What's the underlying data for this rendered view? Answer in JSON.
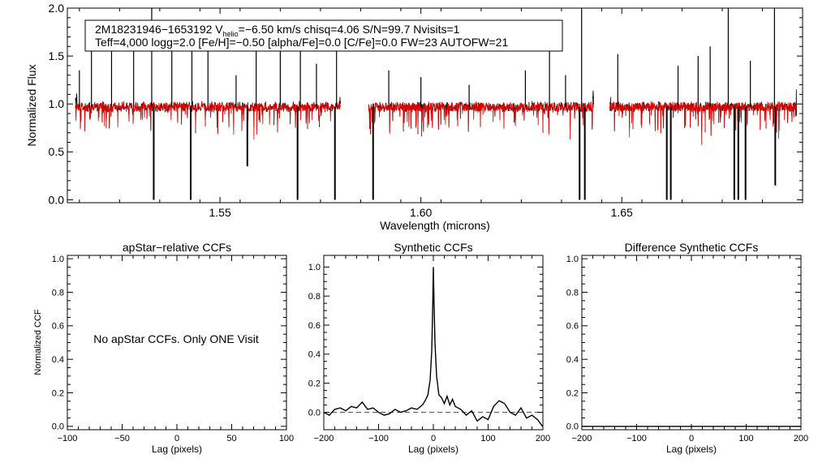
{
  "chart_data": [
    {
      "id": "spectrum",
      "type": "line",
      "xlabel": "Wavelength (microns)",
      "ylabel": "Normalized Flux",
      "xlim": [
        1.512,
        1.695
      ],
      "ylim": [
        -0.03,
        2.0
      ],
      "xticks": [
        {
          "value": 1.55,
          "label": "1.55"
        },
        {
          "value": 1.6,
          "label": "1.60"
        },
        {
          "value": 1.65,
          "label": "1.65"
        }
      ],
      "yticks": [
        {
          "value": 0.0,
          "label": "0.0"
        },
        {
          "value": 0.5,
          "label": "0.5"
        },
        {
          "value": 1.0,
          "label": "1.0"
        },
        {
          "value": 1.5,
          "label": "1.5"
        },
        {
          "value": 2.0,
          "label": "2.0"
        }
      ],
      "annotation": {
        "line1_prefix": "2M18231946−1653192  V",
        "line1_sub": "helio",
        "line1_suffix": "=−6.50 km/s  chisq=4.06  S/N=99.7  Nvisits=1",
        "line2": "Teff=4,000 logg=2.0 [Fe/H]=−0.50 [alpha/Fe]=0.0 [C/Fe]=0.0 FW=23 AUTOFW=21"
      },
      "series": [
        {
          "name": "observed",
          "color": "#000000"
        },
        {
          "name": "model",
          "color": "#e00000"
        }
      ],
      "chips": [
        [
          1.514,
          1.58
        ],
        [
          1.587,
          1.643
        ],
        [
          1.647,
          1.6935
        ]
      ],
      "continuum": 0.97,
      "emission_spikes": [
        [
          1.515,
          1.35
        ],
        [
          1.518,
          1.55
        ],
        [
          1.523,
          1.8
        ],
        [
          1.5285,
          1.85
        ],
        [
          1.533,
          2.0
        ],
        [
          1.538,
          1.62
        ],
        [
          1.543,
          1.78
        ],
        [
          1.547,
          1.6
        ],
        [
          1.554,
          1.3
        ],
        [
          1.559,
          1.78
        ],
        [
          1.565,
          1.55
        ],
        [
          1.57,
          1.78
        ],
        [
          1.574,
          1.42
        ],
        [
          1.579,
          1.65
        ],
        [
          1.592,
          1.35
        ],
        [
          1.6,
          1.28
        ],
        [
          1.612,
          1.2
        ],
        [
          1.626,
          1.35
        ],
        [
          1.632,
          1.55
        ],
        [
          1.636,
          1.3
        ],
        [
          1.64,
          2.0
        ],
        [
          1.649,
          1.52
        ],
        [
          1.664,
          1.4
        ],
        [
          1.669,
          1.5
        ],
        [
          1.672,
          1.6
        ],
        [
          1.6765,
          2.0
        ],
        [
          1.682,
          1.45
        ],
        [
          1.688,
          2.0
        ]
      ],
      "absorption_spikes": [
        [
          1.5335,
          0.0
        ],
        [
          1.5427,
          0.0
        ],
        [
          1.5568,
          0.35
        ],
        [
          1.5693,
          0.0
        ],
        [
          1.5786,
          0.0
        ],
        [
          1.5881,
          0.0
        ],
        [
          1.6395,
          0.0
        ],
        [
          1.6408,
          0.0
        ],
        [
          1.6612,
          0.0
        ],
        [
          1.6622,
          0.0
        ],
        [
          1.678,
          0.0
        ],
        [
          1.679,
          0.0
        ],
        [
          1.6808,
          0.0
        ],
        [
          1.6882,
          0.15
        ]
      ]
    },
    {
      "id": "apstar-ccf",
      "type": "line",
      "title": "apStar−relative CCFs",
      "xlabel": "Lag (pixels)",
      "ylabel": "Normalized CCF",
      "xlim": [
        -100,
        100
      ],
      "ylim": [
        -0.02,
        1.02
      ],
      "xticks": [
        {
          "value": -100,
          "label": "−100"
        },
        {
          "value": -50,
          "label": "−50"
        },
        {
          "value": 0,
          "label": "0"
        },
        {
          "value": 50,
          "label": "50"
        },
        {
          "value": 100,
          "label": "100"
        }
      ],
      "yticks": [
        {
          "value": 0.0,
          "label": "0.0"
        },
        {
          "value": 0.2,
          "label": "0.2"
        },
        {
          "value": 0.4,
          "label": "0.4"
        },
        {
          "value": 0.6,
          "label": "0.6"
        },
        {
          "value": 0.8,
          "label": "0.8"
        },
        {
          "value": 1.0,
          "label": "1.0"
        }
      ],
      "message": "No apStar CCFs.  Only ONE Visit"
    },
    {
      "id": "synthetic-ccf",
      "type": "line",
      "title": "Synthetic CCFs",
      "xlabel": "Lag (pixels)",
      "xlim": [
        -200,
        200
      ],
      "ylim": [
        -0.12,
        1.08
      ],
      "xticks": [
        {
          "value": -200,
          "label": "−200"
        },
        {
          "value": -100,
          "label": "−100"
        },
        {
          "value": 0,
          "label": "0"
        },
        {
          "value": 100,
          "label": "100"
        },
        {
          "value": 200,
          "label": "200"
        }
      ],
      "yticks": [
        {
          "value": 0.0,
          "label": "0.0"
        },
        {
          "value": 0.2,
          "label": "0.2"
        },
        {
          "value": 0.4,
          "label": "0.4"
        },
        {
          "value": 0.6,
          "label": "0.6"
        },
        {
          "value": 0.8,
          "label": "0.8"
        },
        {
          "value": 1.0,
          "label": "1.0"
        }
      ],
      "reference_line": 0.0,
      "x": [
        -200,
        -190,
        -180,
        -170,
        -160,
        -150,
        -140,
        -130,
        -120,
        -110,
        -100,
        -90,
        -80,
        -70,
        -60,
        -50,
        -40,
        -30,
        -20,
        -15,
        -10,
        -6,
        -3,
        -1,
        0,
        1,
        3,
        6,
        10,
        15,
        20,
        25,
        30,
        35,
        40,
        50,
        60,
        70,
        80,
        90,
        100,
        110,
        120,
        130,
        140,
        150,
        160,
        170,
        180,
        190,
        200
      ],
      "y": [
        0.0,
        -0.02,
        0.02,
        0.03,
        0.01,
        0.04,
        0.03,
        0.07,
        0.02,
        0.03,
        0.0,
        -0.02,
        -0.01,
        0.02,
        0.0,
        0.01,
        0.03,
        0.02,
        0.05,
        0.08,
        0.12,
        0.22,
        0.42,
        0.75,
        1.0,
        0.8,
        0.48,
        0.25,
        0.12,
        0.1,
        0.06,
        0.11,
        0.05,
        0.09,
        0.04,
        0.02,
        -0.02,
        0.01,
        -0.06,
        -0.03,
        -0.05,
        0.04,
        0.08,
        0.06,
        0.0,
        -0.02,
        0.03,
        -0.04,
        -0.02,
        -0.05,
        -0.1
      ]
    },
    {
      "id": "difference-ccf",
      "type": "line",
      "title": "Difference Synthetic CCFs",
      "xlabel": "Lag (pixels)",
      "xlim": [
        -200,
        200
      ],
      "ylim": [
        -0.02,
        1.02
      ],
      "xticks": [
        {
          "value": -200,
          "label": "−200"
        },
        {
          "value": -100,
          "label": "−100"
        },
        {
          "value": 0,
          "label": "0"
        },
        {
          "value": 100,
          "label": "100"
        },
        {
          "value": 200,
          "label": "200"
        }
      ],
      "yticks": [
        {
          "value": 0.0,
          "label": "0.0"
        },
        {
          "value": 0.2,
          "label": "0.2"
        },
        {
          "value": 0.4,
          "label": "0.4"
        },
        {
          "value": 0.6,
          "label": "0.6"
        },
        {
          "value": 0.8,
          "label": "0.8"
        },
        {
          "value": 1.0,
          "label": "1.0"
        }
      ],
      "x": [
        -200,
        200
      ],
      "y": [
        0.0,
        0.0
      ]
    }
  ]
}
